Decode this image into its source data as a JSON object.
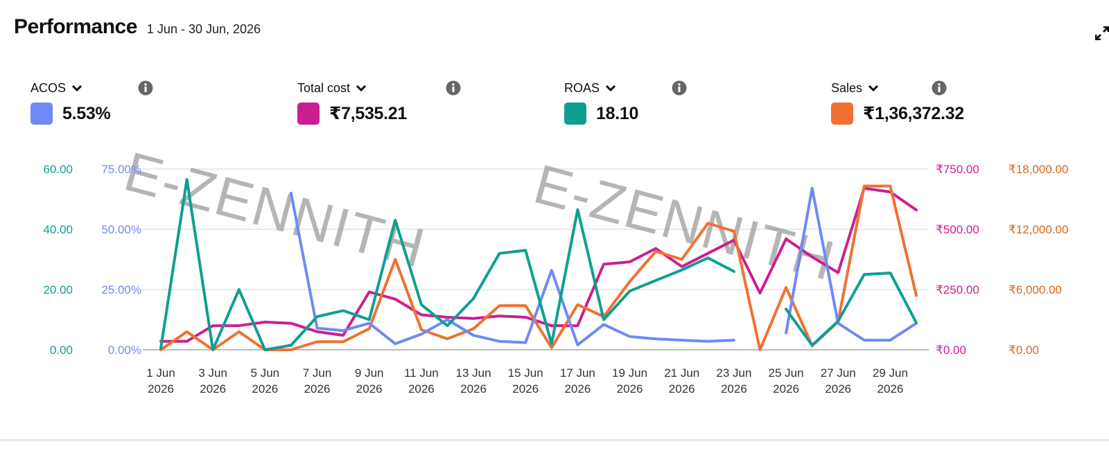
{
  "header": {
    "title": "Performance",
    "date_range": "1 Jun - 30 Jun, 2026"
  },
  "watermark": "E-ZENNITH",
  "metrics": [
    {
      "name": "ACOS",
      "value": "5.53%",
      "color": "#6f8af5"
    },
    {
      "name": "Total cost",
      "value": "₹7,535.21",
      "color": "#cc1f8f"
    },
    {
      "name": "ROAS",
      "value": "18.10",
      "color": "#0e9f92"
    },
    {
      "name": "Sales",
      "value": "₹1,36,372.32",
      "color": "#f07033"
    }
  ],
  "icons": {
    "expand": "expand-icon",
    "info": "info-icon",
    "chevron": "chevron-down-icon"
  },
  "chart_data": {
    "type": "line",
    "x": [
      "1 Jun",
      "2 Jun",
      "3 Jun",
      "4 Jun",
      "5 Jun",
      "6 Jun",
      "7 Jun",
      "8 Jun",
      "9 Jun",
      "10 Jun",
      "11 Jun",
      "12 Jun",
      "13 Jun",
      "14 Jun",
      "15 Jun",
      "16 Jun",
      "17 Jun",
      "18 Jun",
      "19 Jun",
      "20 Jun",
      "21 Jun",
      "22 Jun",
      "23 Jun",
      "24 Jun",
      "25 Jun",
      "26 Jun",
      "27 Jun",
      "28 Jun",
      "29 Jun",
      "30 Jun"
    ],
    "x_tick_labels": [
      {
        "line1": "1 Jun",
        "line2": "2026"
      },
      {
        "line1": "3 Jun",
        "line2": "2026"
      },
      {
        "line1": "5 Jun",
        "line2": "2026"
      },
      {
        "line1": "7 Jun",
        "line2": "2026"
      },
      {
        "line1": "9 Jun",
        "line2": "2026"
      },
      {
        "line1": "11 Jun",
        "line2": "2026"
      },
      {
        "line1": "13 Jun",
        "line2": "2026"
      },
      {
        "line1": "15 Jun",
        "line2": "2026"
      },
      {
        "line1": "17 Jun",
        "line2": "2026"
      },
      {
        "line1": "19 Jun",
        "line2": "2026"
      },
      {
        "line1": "21 Jun",
        "line2": "2026"
      },
      {
        "line1": "23 Jun",
        "line2": "2026"
      },
      {
        "line1": "25 Jun",
        "line2": "2026"
      },
      {
        "line1": "27 Jun",
        "line2": "2026"
      },
      {
        "line1": "29 Jun",
        "line2": "2026"
      }
    ],
    "axes": {
      "roas": {
        "ticks": [
          "0.00",
          "20.00",
          "40.00",
          "60.00"
        ],
        "range": [
          0,
          60
        ],
        "color": "#0e9f92"
      },
      "acos": {
        "ticks": [
          "0.00%",
          "25.00%",
          "50.00%",
          "75.00%"
        ],
        "range": [
          0,
          75
        ],
        "color": "#6f8af5"
      },
      "total_cost": {
        "ticks": [
          "₹0.00",
          "₹250.00",
          "₹500.00",
          "₹750.00"
        ],
        "range": [
          0,
          750
        ],
        "color": "#cc1f8f"
      },
      "sales": {
        "ticks": [
          "₹0.00",
          "₹6,000.00",
          "₹12,000.00",
          "₹18,000.00"
        ],
        "range": [
          0,
          18000
        ],
        "color": "#d9661f"
      }
    },
    "series": [
      {
        "name": "ROAS",
        "axis": "roas",
        "color": "#0e9f92",
        "values": [
          0.5,
          56.5,
          0,
          20,
          0,
          1.5,
          11,
          13,
          10,
          43,
          15,
          8,
          17,
          32,
          33,
          2,
          46.5,
          10,
          19.5,
          23,
          26.5,
          30.5,
          26,
          null,
          13.5,
          1.5,
          9.5,
          25,
          25.5,
          9
        ]
      },
      {
        "name": "ACOS",
        "axis": "acos",
        "color": "#6f8af5",
        "values": [
          3,
          null,
          null,
          null,
          null,
          65,
          9,
          8,
          11,
          2.5,
          6.5,
          12.5,
          6,
          3.5,
          3,
          33,
          2,
          10.5,
          5.5,
          4.5,
          4,
          3.5,
          4,
          null,
          7,
          67,
          11,
          4,
          4,
          11
        ]
      },
      {
        "name": "Total cost",
        "axis": "total_cost",
        "color": "#cc1f8f",
        "values": [
          35,
          35,
          100,
          100,
          115,
          110,
          75,
          60,
          240,
          210,
          145,
          135,
          130,
          140,
          135,
          100,
          100,
          355,
          365,
          420,
          345,
          400,
          455,
          235,
          460,
          385,
          320,
          670,
          655,
          580
        ]
      },
      {
        "name": "Sales",
        "axis": "sales",
        "color": "#f07033",
        "values": [
          0,
          1800,
          0,
          1800,
          0,
          0,
          800,
          800,
          2100,
          9000,
          2000,
          1100,
          2100,
          4400,
          4400,
          200,
          4500,
          3300,
          6800,
          9800,
          9000,
          12600,
          11800,
          0,
          6200,
          400,
          2800,
          16300,
          16300,
          5400
        ]
      }
    ]
  }
}
